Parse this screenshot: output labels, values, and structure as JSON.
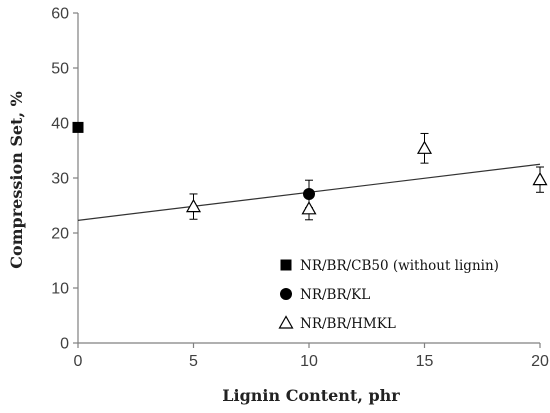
{
  "chart_data": {
    "type": "scatter",
    "xlabel": "Lignin Content, phr",
    "ylabel": "Compression Set, %",
    "xlim": [
      0,
      20
    ],
    "ylim": [
      0,
      60
    ],
    "x_ticks": [
      0,
      5,
      10,
      15,
      20
    ],
    "y_ticks": [
      0,
      10,
      20,
      30,
      40,
      50,
      60
    ],
    "grid": false,
    "legend_position": "bottom-right",
    "series": [
      {
        "name": "NR/BR/CB50 (without lignin)",
        "marker": "filled-square",
        "color": "#000000",
        "points": [
          {
            "x": 0,
            "y": 39.2
          }
        ]
      },
      {
        "name": "NR/BR/KL",
        "marker": "filled-circle",
        "color": "#000000",
        "points": [
          {
            "x": 10,
            "y": 27.1,
            "err": 2.5
          }
        ]
      },
      {
        "name": "NR/BR/HMKL",
        "marker": "open-triangle",
        "color": "#000000",
        "points": [
          {
            "x": 5,
            "y": 24.8,
            "err": 2.3
          },
          {
            "x": 10,
            "y": 24.4,
            "err": 2.0
          },
          {
            "x": 15,
            "y": 35.4,
            "err": 2.7
          },
          {
            "x": 20,
            "y": 29.7,
            "err": 2.3
          }
        ]
      }
    ],
    "trendline": {
      "x_start": 0,
      "y_start": 22.3,
      "x_end": 20,
      "y_end": 32.5,
      "color": "#333333"
    }
  }
}
